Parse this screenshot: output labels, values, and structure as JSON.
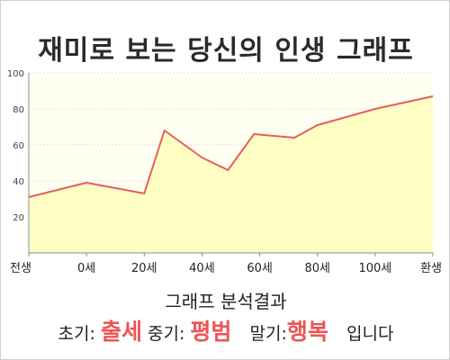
{
  "title": "재미로 보는 당신의 인생 그래프",
  "colors": {
    "line": "#e85c5c",
    "fill": "#ffffc4",
    "plot_bg": "#fffff2",
    "axis": "#8c8c8c",
    "grid": "#dcdcdc",
    "highlight": "#ee5555"
  },
  "chart_data": {
    "type": "area",
    "x_tick_labels": [
      "전생",
      "0세",
      "20세",
      "40세",
      "60세",
      "80세",
      "100세",
      "환생"
    ],
    "x_tick_values": [
      -20,
      0,
      20,
      40,
      60,
      80,
      100,
      120
    ],
    "x": [
      -20,
      0,
      20,
      27,
      40,
      49,
      58,
      72,
      80,
      100,
      120
    ],
    "values": [
      31,
      39,
      33,
      68,
      53,
      46,
      66,
      64,
      71,
      80,
      87
    ],
    "xlim": [
      -20,
      120
    ],
    "ylim": [
      0,
      100
    ],
    "y_ticks": [
      20,
      40,
      60,
      80,
      100
    ],
    "grid": "horizontal, dashed",
    "legend": "none"
  },
  "result": {
    "heading": "그래프 분석결과",
    "early_label": "초기:",
    "early_value": "출세",
    "mid_label": "중기:",
    "mid_value": "평범",
    "late_label": "말기:",
    "late_value": "행복",
    "suffix": "입니다"
  }
}
